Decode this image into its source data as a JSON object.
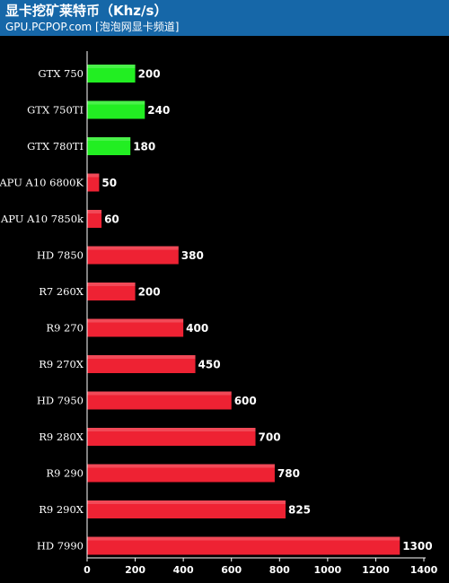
{
  "header": {
    "title": "显卡挖矿莱特币（Khz/s）",
    "subtitle": "GPU.PCPOP.com [泡泡网显卡频道]",
    "background_color": "#1667a8"
  },
  "chart_data": {
    "type": "bar",
    "orientation": "horizontal",
    "title": "显卡挖矿莱特币（Khz/s）",
    "xlabel": "",
    "ylabel": "",
    "xlim": [
      0,
      1400
    ],
    "x_ticks": [
      0,
      200,
      400,
      600,
      800,
      1000,
      1200,
      1400
    ],
    "grid": false,
    "categories": [
      "GTX 750",
      "GTX 750TI",
      "GTX 780TI",
      "APU A10 6800K",
      "APU A10 7850k",
      "HD 7850",
      "R7 260X",
      "R9 270",
      "R9 270X",
      "HD 7950",
      "R9 280X",
      "R9 290",
      "R9 290X",
      "HD 7990"
    ],
    "values": [
      200,
      240,
      180,
      50,
      60,
      380,
      200,
      400,
      450,
      600,
      700,
      780,
      825,
      1300
    ],
    "bar_colors": [
      "#22ee22",
      "#22ee22",
      "#22ee22",
      "#ee2233",
      "#ee2233",
      "#ee2233",
      "#ee2233",
      "#ee2233",
      "#ee2233",
      "#ee2233",
      "#ee2233",
      "#ee2233",
      "#ee2233",
      "#ee2233"
    ]
  }
}
